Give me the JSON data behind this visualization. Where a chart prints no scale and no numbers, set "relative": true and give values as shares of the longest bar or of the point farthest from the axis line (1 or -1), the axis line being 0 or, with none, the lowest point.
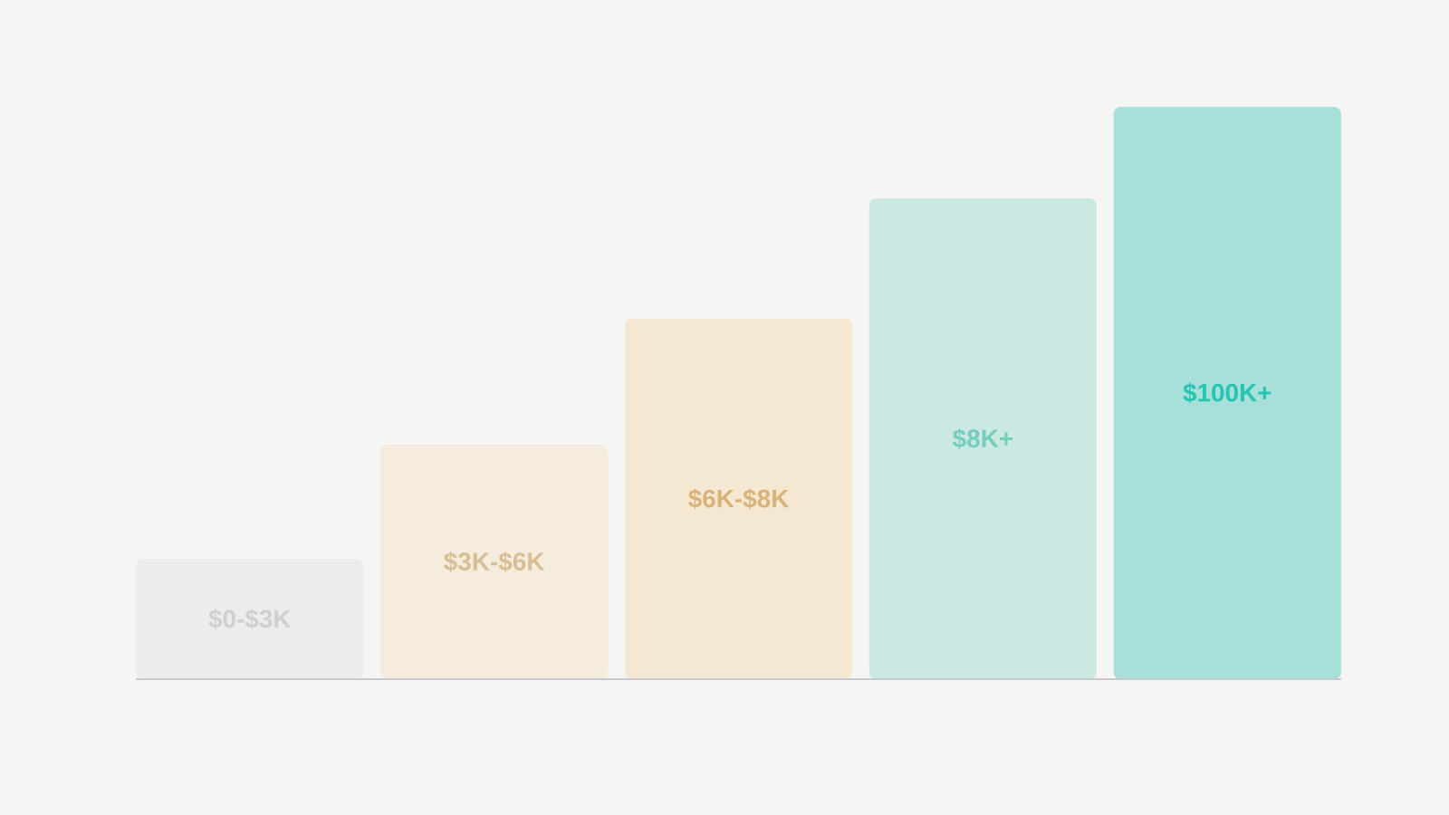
{
  "chart_data": {
    "type": "bar",
    "categories": [
      "$0-$3K",
      "$3K-$6K",
      "$6K-$8K",
      "$8K+",
      "$100K+"
    ],
    "values": [
      0.21,
      0.41,
      0.63,
      0.84,
      1
    ],
    "colors": [
      "#ebeceb",
      "#f5ecdd",
      "#f5e8d3",
      "#cae9e3",
      "#a7dfd9"
    ],
    "relative": true
  }
}
